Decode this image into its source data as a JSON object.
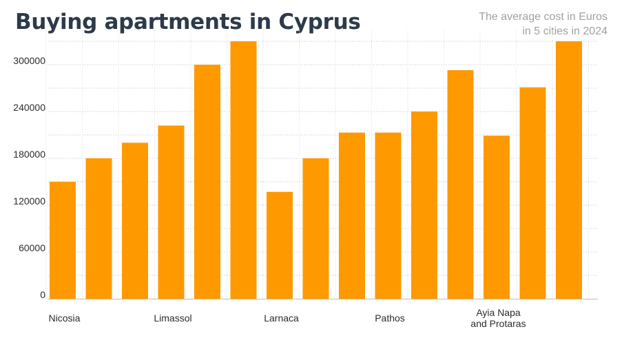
{
  "title": "Buying apartments in Cyprus",
  "subtitle_lines": [
    "The average cost in Euros",
    "in 5 cities in 2024"
  ],
  "chart_data": {
    "type": "bar",
    "title": "Buying apartments in Cyprus",
    "subtitle": "The average cost in Euros in 5 cities in 2024",
    "xlabel": "",
    "ylabel": "",
    "ylim": [
      0,
      300000
    ],
    "yticks": [
      "0",
      "60000",
      "120000",
      "180000",
      "240000",
      "300000"
    ],
    "ytick_values": [
      0,
      60000,
      120000,
      180000,
      240000,
      300000
    ],
    "bar_color": "#ff9900",
    "grid": "dotted horizontal and vertical",
    "legend": "none",
    "categories": [
      "Nicosia",
      "Limassol",
      "Larnaca",
      "Pathos",
      "Ayia Napa and Protaras"
    ],
    "category_labels": [
      [
        "Nicosia"
      ],
      [
        "Limassol"
      ],
      [
        "Larnaca"
      ],
      [
        "Pathos"
      ],
      [
        "Ayia Napa",
        "and Protaras"
      ]
    ],
    "bars_per_category": 3,
    "values": [
      [
        150000,
        180000,
        200000
      ],
      [
        222000,
        300000,
        330000
      ],
      [
        137000,
        180000,
        213000
      ],
      [
        213000,
        240000,
        293000
      ],
      [
        209000,
        271000,
        330000
      ]
    ]
  }
}
